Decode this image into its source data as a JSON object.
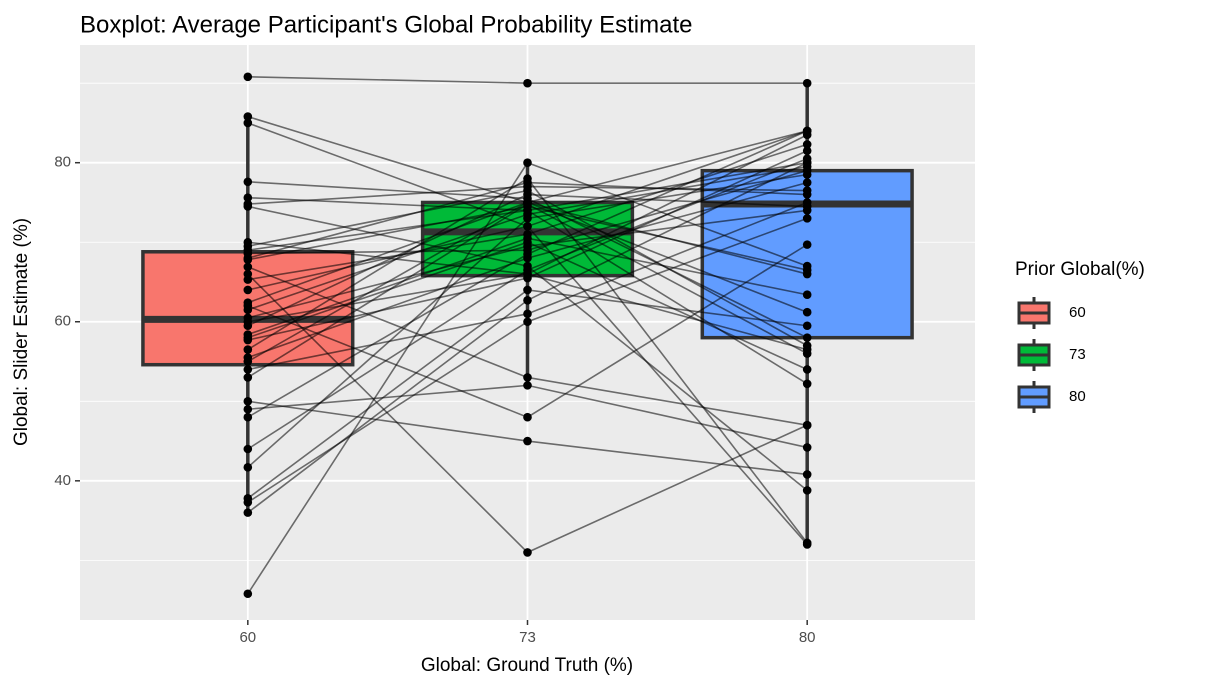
{
  "chart_data": {
    "type": "boxplot",
    "title": "Boxplot: Average Participant's Global Probability Estimate",
    "xlabel": "Global: Ground Truth (%)",
    "ylabel": "Global: Slider Estimate (%)",
    "legend_title": "Prior Global(%)",
    "categories": [
      "60",
      "73",
      "80"
    ],
    "ylim": [
      22.5,
      94.8
    ],
    "yticks": [
      40,
      60,
      80
    ],
    "yminor": [
      30,
      50,
      70,
      90
    ],
    "grid": true,
    "boxes": [
      {
        "name": "60",
        "color": "#F8766D",
        "whisker_low": 36,
        "q1": 54.6,
        "median": 60.3,
        "q3": 68.8,
        "whisker_high": 86
      },
      {
        "name": "73",
        "color": "#00BA38",
        "whisker_low": 52,
        "q1": 65.8,
        "median": 71.3,
        "q3": 75,
        "whisker_high": 80
      },
      {
        "name": "80",
        "color": "#619CFF",
        "whisker_low": 32,
        "q1": 58,
        "median": 74.8,
        "q3": 79,
        "whisker_high": 90
      }
    ],
    "lines": [
      [
        90.8,
        90,
        90
      ],
      [
        85.8,
        75,
        84
      ],
      [
        85,
        72,
        84
      ],
      [
        77.6,
        75.5,
        58
      ],
      [
        75.6,
        74,
        80
      ],
      [
        74.8,
        77,
        76.5
      ],
      [
        74.5,
        67,
        38.8
      ],
      [
        70,
        66,
        83.5
      ],
      [
        69.5,
        76.5,
        57
      ],
      [
        68.6,
        69,
        79
      ],
      [
        67.8,
        74.5,
        66.5
      ],
      [
        66.9,
        53,
        47
      ],
      [
        65.3,
        71,
        82.3
      ],
      [
        62.4,
        75,
        61.2
      ],
      [
        61.5,
        73.5,
        79.5
      ],
      [
        60.5,
        69.5,
        74
      ],
      [
        59.5,
        76,
        74.5
      ],
      [
        58.4,
        70.5,
        63.4
      ],
      [
        57.7,
        65.5,
        81.5
      ],
      [
        56.5,
        78,
        32.2
      ],
      [
        55.5,
        68,
        77.5
      ],
      [
        54,
        61,
        75
      ],
      [
        53,
        74.8,
        56
      ],
      [
        50,
        45,
        40.8
      ],
      [
        49,
        52,
        44.2
      ],
      [
        48,
        68.5,
        84
      ],
      [
        44,
        66.5,
        80.5
      ],
      [
        41.7,
        73,
        78.5
      ],
      [
        37.8,
        64,
        59.5
      ],
      [
        37.3,
        60,
        73
      ],
      [
        36,
        62.7,
        80
      ],
      [
        25.8,
        80,
        67
      ],
      [
        66,
        31,
        47
      ],
      [
        62,
        48,
        69.7
      ],
      [
        69,
        74,
        52.2
      ],
      [
        58,
        70,
        54
      ],
      [
        64,
        72,
        32
      ],
      [
        60,
        66,
        56.5
      ],
      [
        68,
        77.5,
        76
      ],
      [
        55,
        75,
        66
      ]
    ]
  }
}
